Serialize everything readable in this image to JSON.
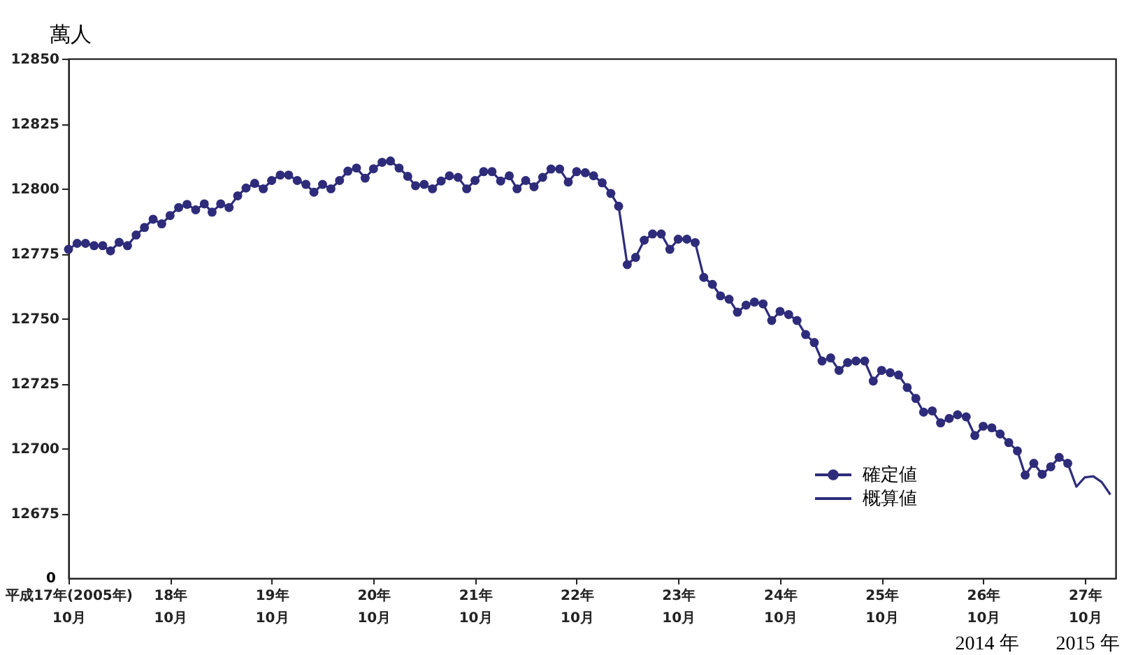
{
  "chart_data": {
    "type": "line",
    "ylabel": "萬人",
    "x": [
      "2005-10",
      "2005-11",
      "2005-12",
      "2006-01",
      "2006-02",
      "2006-03",
      "2006-04",
      "2006-05",
      "2006-06",
      "2006-07",
      "2006-08",
      "2006-09",
      "2006-10",
      "2006-11",
      "2006-12",
      "2007-01",
      "2007-02",
      "2007-03",
      "2007-04",
      "2007-05",
      "2007-06",
      "2007-07",
      "2007-08",
      "2007-09",
      "2007-10",
      "2007-11",
      "2007-12",
      "2008-01",
      "2008-02",
      "2008-03",
      "2008-04",
      "2008-05",
      "2008-06",
      "2008-07",
      "2008-08",
      "2008-09",
      "2008-10",
      "2008-11",
      "2008-12",
      "2009-01",
      "2009-02",
      "2009-03",
      "2009-04",
      "2009-05",
      "2009-06",
      "2009-07",
      "2009-08",
      "2009-09",
      "2009-10",
      "2009-11",
      "2009-12",
      "2010-01",
      "2010-02",
      "2010-03",
      "2010-04",
      "2010-05",
      "2010-06",
      "2010-07",
      "2010-08",
      "2010-09",
      "2010-10",
      "2010-11",
      "2010-12",
      "2011-01",
      "2011-02",
      "2011-03",
      "2011-04",
      "2011-05",
      "2011-06",
      "2011-07",
      "2011-08",
      "2011-09",
      "2011-10",
      "2011-11",
      "2011-12",
      "2012-01",
      "2012-02",
      "2012-03",
      "2012-04",
      "2012-05",
      "2012-06",
      "2012-07",
      "2012-08",
      "2012-09",
      "2012-10",
      "2012-11",
      "2012-12",
      "2013-01",
      "2013-02",
      "2013-03",
      "2013-04",
      "2013-05",
      "2013-06",
      "2013-07",
      "2013-08",
      "2013-09",
      "2013-10",
      "2013-11",
      "2013-12",
      "2014-01",
      "2014-02",
      "2014-03",
      "2014-04",
      "2014-05",
      "2014-06",
      "2014-07",
      "2014-08",
      "2014-09",
      "2014-10",
      "2014-11",
      "2014-12",
      "2015-01",
      "2015-02",
      "2015-03",
      "2015-04",
      "2015-05",
      "2015-06",
      "2015-07",
      "2015-08"
    ],
    "series": [
      {
        "name": "確定値",
        "color": "#2e2c7a",
        "marker": "circle",
        "values": [
          12776.6,
          12778.9,
          12778.9,
          12778.0,
          12778.0,
          12776.0,
          12779.3,
          12778.0,
          12782.1,
          12785.0,
          12788.2,
          12786.4,
          12789.6,
          12792.7,
          12793.9,
          12791.8,
          12794.1,
          12790.9,
          12794.1,
          12792.7,
          12797.2,
          12800.2,
          12802.0,
          12799.9,
          12803.1,
          12805.2,
          12805.2,
          12803.1,
          12801.6,
          12798.6,
          12801.6,
          12799.9,
          12803.1,
          12806.7,
          12807.9,
          12804.0,
          12807.6,
          12810.1,
          12810.6,
          12807.9,
          12804.7,
          12801.1,
          12801.6,
          12799.9,
          12802.9,
          12804.9,
          12804.3,
          12799.9,
          12803.1,
          12806.5,
          12806.5,
          12802.9,
          12804.9,
          12799.9,
          12803.1,
          12800.7,
          12804.3,
          12807.5,
          12807.5,
          12802.5,
          12806.5,
          12806.1,
          12804.9,
          12802.2,
          12798.1,
          12793.2,
          12770.7,
          12773.5,
          12780.1,
          12782.5,
          12782.5,
          12776.6,
          12780.5,
          12780.5,
          12779.2,
          12765.8,
          12763.1,
          12758.7,
          12757.4,
          12752.4,
          12755.1,
          12756.3,
          12755.6,
          12749.2,
          12752.7,
          12751.5,
          12749.2,
          12743.8,
          12740.7,
          12733.6,
          12734.8,
          12730.0,
          12733.0,
          12733.6,
          12733.6,
          12725.9,
          12730.0,
          12729.1,
          12728.2,
          12723.4,
          12719.2,
          12713.9,
          12714.4,
          12709.8,
          12711.5,
          12712.9,
          12712.1,
          12704.9,
          12708.5,
          12707.9,
          12705.5,
          12702.2,
          12699.0,
          12689.7,
          12694.2,
          12690.0,
          12692.9,
          12696.5,
          12694.2
        ]
      },
      {
        "name": "概算値",
        "color": "#2e2c7a",
        "marker": "none",
        "x": [
          "2015-08",
          "2015-09",
          "2015-10",
          "2015-11",
          "2015-12",
          "2016-01"
        ],
        "values": [
          12694.2,
          12685.2,
          12688.8,
          12689.2,
          12687.0,
          12682.2
        ]
      }
    ],
    "xlim": [
      "2005-10",
      "2016-01-20"
    ],
    "xticks": [
      {
        "value": "2005-10",
        "label": "平成17年(2005年)\n10月"
      },
      {
        "value": "2006-10",
        "label": "18年\n10月"
      },
      {
        "value": "2007-10",
        "label": "19年\n10月"
      },
      {
        "value": "2008-10",
        "label": "20年\n10月"
      },
      {
        "value": "2009-10",
        "label": "21年\n10月"
      },
      {
        "value": "2010-10",
        "label": "22年\n10月"
      },
      {
        "value": "2011-10",
        "label": "23年\n10月"
      },
      {
        "value": "2012-10",
        "label": "24年\n10月"
      },
      {
        "value": "2013-10",
        "label": "25年\n10月"
      },
      {
        "value": "2014-10",
        "label": "26年\n10月"
      },
      {
        "value": "2015-10",
        "label": "27年\n10月"
      }
    ],
    "ylim": [
      12650,
      12850
    ],
    "yticks": [
      12675,
      12700,
      12725,
      12750,
      12775,
      12800,
      12825,
      12850
    ],
    "grid": false,
    "legend": "bottom right",
    "annotations": [
      "0",
      "2014 年",
      "2015 年"
    ]
  }
}
